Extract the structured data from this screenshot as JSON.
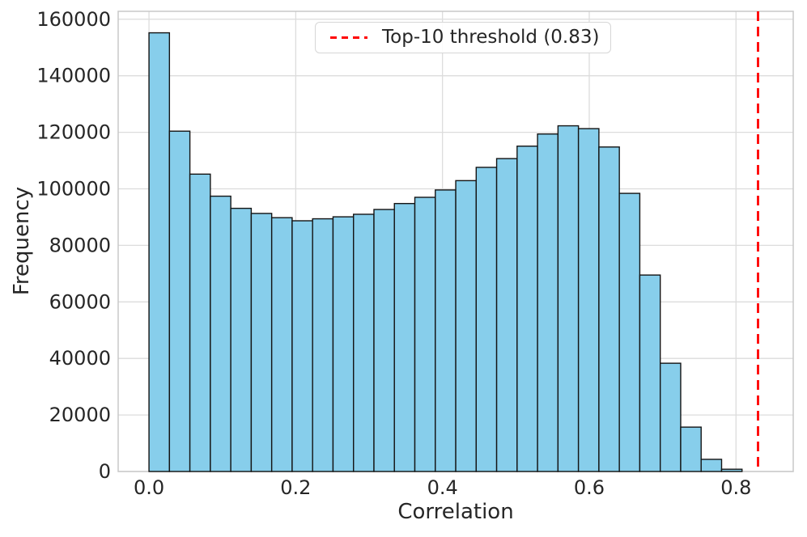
{
  "chart_data": {
    "type": "bar",
    "subtype": "histogram",
    "title": "",
    "xlabel": "Correlation",
    "ylabel": "Frequency",
    "bin_start": 0.0,
    "bin_width": 0.02787,
    "values": [
      155200,
      120400,
      105200,
      97400,
      93100,
      91300,
      89800,
      88700,
      89400,
      90100,
      91000,
      92700,
      94800,
      97000,
      99600,
      102900,
      107600,
      110700,
      115100,
      119400,
      122300,
      121300,
      114800,
      98400,
      69500,
      38300,
      15700,
      4300,
      800,
      50
    ],
    "xlim": [
      -0.042,
      0.878
    ],
    "ylim": [
      0,
      162800
    ],
    "xticks": [
      0.0,
      0.2,
      0.4,
      0.6,
      0.8
    ],
    "xtick_labels": [
      "0.0",
      "0.2",
      "0.4",
      "0.6",
      "0.8"
    ],
    "yticks": [
      0,
      20000,
      40000,
      60000,
      80000,
      100000,
      120000,
      140000,
      160000
    ],
    "ytick_labels": [
      "0",
      "20000",
      "40000",
      "60000",
      "80000",
      "100000",
      "120000",
      "140000",
      "160000"
    ],
    "grid": true,
    "legend_position": "upper center",
    "threshold": {
      "value": 0.83,
      "label": "Top-10 threshold (0.83)",
      "color": "#ff0000",
      "style": "dashed"
    },
    "legend": {
      "entries": [
        {
          "label": "Top-10 threshold (0.83)",
          "color": "#ff0000",
          "dashed": true
        }
      ]
    },
    "colors": {
      "bar_fill": "#87CEEB",
      "bar_edge": "#141414",
      "grid": "#dcdcdc",
      "spine": "#c8c8c8",
      "text": "#262626",
      "background": "#ffffff"
    }
  }
}
